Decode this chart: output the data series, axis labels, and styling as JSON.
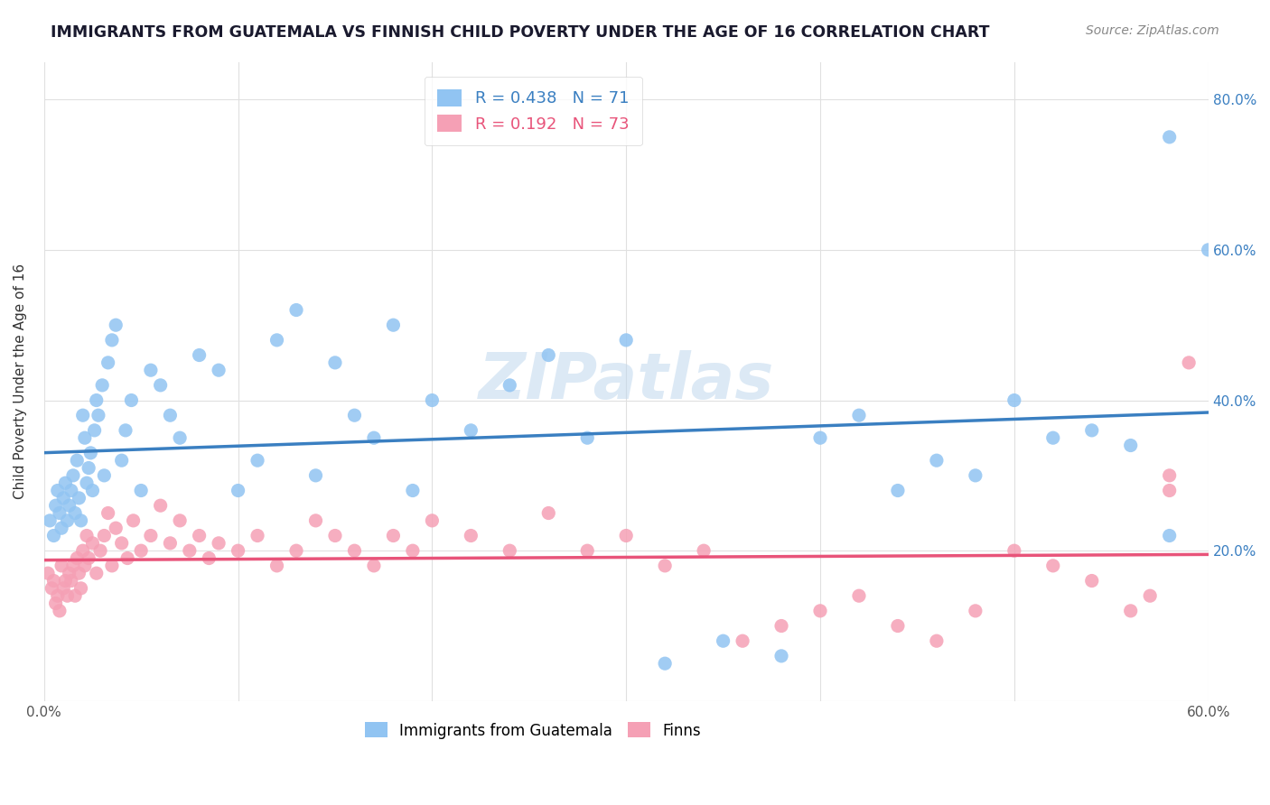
{
  "title": "IMMIGRANTS FROM GUATEMALA VS FINNISH CHILD POVERTY UNDER THE AGE OF 16 CORRELATION CHART",
  "source": "Source: ZipAtlas.com",
  "ylabel": "Child Poverty Under the Age of 16",
  "xlim": [
    0.0,
    0.6
  ],
  "ylim": [
    0.0,
    0.85
  ],
  "xticks": [
    0.0,
    0.1,
    0.2,
    0.3,
    0.4,
    0.5,
    0.6
  ],
  "xticklabels": [
    "0.0%",
    "",
    "",
    "",
    "",
    "",
    "60.0%"
  ],
  "yticks": [
    0.0,
    0.2,
    0.4,
    0.6,
    0.8
  ],
  "yticklabels": [
    "",
    "20.0%",
    "40.0%",
    "60.0%",
    "80.0%"
  ],
  "blue_R": "0.438",
  "blue_N": "71",
  "pink_R": "0.192",
  "pink_N": "73",
  "blue_color": "#91c4f2",
  "pink_color": "#f5a0b5",
  "blue_line_color": "#3a7fc1",
  "pink_line_color": "#e8547a",
  "watermark": "ZIPatlas",
  "background_color": "#ffffff",
  "grid_color": "#e0e0e0",
  "title_color": "#1a1a2e",
  "blue_scatter_x": [
    0.003,
    0.005,
    0.006,
    0.007,
    0.008,
    0.009,
    0.01,
    0.011,
    0.012,
    0.013,
    0.014,
    0.015,
    0.016,
    0.017,
    0.018,
    0.019,
    0.02,
    0.021,
    0.022,
    0.023,
    0.024,
    0.025,
    0.026,
    0.027,
    0.028,
    0.03,
    0.031,
    0.033,
    0.035,
    0.037,
    0.04,
    0.042,
    0.045,
    0.05,
    0.055,
    0.06,
    0.065,
    0.07,
    0.08,
    0.09,
    0.1,
    0.11,
    0.12,
    0.13,
    0.14,
    0.15,
    0.16,
    0.17,
    0.18,
    0.19,
    0.2,
    0.22,
    0.24,
    0.26,
    0.28,
    0.3,
    0.32,
    0.35,
    0.38,
    0.4,
    0.42,
    0.44,
    0.46,
    0.48,
    0.5,
    0.52,
    0.54,
    0.56,
    0.58,
    0.6,
    0.58
  ],
  "blue_scatter_y": [
    0.24,
    0.22,
    0.26,
    0.28,
    0.25,
    0.23,
    0.27,
    0.29,
    0.24,
    0.26,
    0.28,
    0.3,
    0.25,
    0.32,
    0.27,
    0.24,
    0.38,
    0.35,
    0.29,
    0.31,
    0.33,
    0.28,
    0.36,
    0.4,
    0.38,
    0.42,
    0.3,
    0.45,
    0.48,
    0.5,
    0.32,
    0.36,
    0.4,
    0.28,
    0.44,
    0.42,
    0.38,
    0.35,
    0.46,
    0.44,
    0.28,
    0.32,
    0.48,
    0.52,
    0.3,
    0.45,
    0.38,
    0.35,
    0.5,
    0.28,
    0.4,
    0.36,
    0.42,
    0.46,
    0.35,
    0.48,
    0.05,
    0.08,
    0.06,
    0.35,
    0.38,
    0.28,
    0.32,
    0.3,
    0.4,
    0.35,
    0.36,
    0.34,
    0.22,
    0.6,
    0.75
  ],
  "pink_scatter_x": [
    0.002,
    0.004,
    0.005,
    0.006,
    0.007,
    0.008,
    0.009,
    0.01,
    0.011,
    0.012,
    0.013,
    0.014,
    0.015,
    0.016,
    0.017,
    0.018,
    0.019,
    0.02,
    0.021,
    0.022,
    0.023,
    0.025,
    0.027,
    0.029,
    0.031,
    0.033,
    0.035,
    0.037,
    0.04,
    0.043,
    0.046,
    0.05,
    0.055,
    0.06,
    0.065,
    0.07,
    0.075,
    0.08,
    0.085,
    0.09,
    0.1,
    0.11,
    0.12,
    0.13,
    0.14,
    0.15,
    0.16,
    0.17,
    0.18,
    0.19,
    0.2,
    0.22,
    0.24,
    0.26,
    0.28,
    0.3,
    0.32,
    0.34,
    0.36,
    0.38,
    0.4,
    0.42,
    0.44,
    0.46,
    0.48,
    0.5,
    0.52,
    0.54,
    0.56,
    0.58,
    0.59,
    0.58,
    0.57
  ],
  "pink_scatter_y": [
    0.17,
    0.15,
    0.16,
    0.13,
    0.14,
    0.12,
    0.18,
    0.15,
    0.16,
    0.14,
    0.17,
    0.16,
    0.18,
    0.14,
    0.19,
    0.17,
    0.15,
    0.2,
    0.18,
    0.22,
    0.19,
    0.21,
    0.17,
    0.2,
    0.22,
    0.25,
    0.18,
    0.23,
    0.21,
    0.19,
    0.24,
    0.2,
    0.22,
    0.26,
    0.21,
    0.24,
    0.2,
    0.22,
    0.19,
    0.21,
    0.2,
    0.22,
    0.18,
    0.2,
    0.24,
    0.22,
    0.2,
    0.18,
    0.22,
    0.2,
    0.24,
    0.22,
    0.2,
    0.25,
    0.2,
    0.22,
    0.18,
    0.2,
    0.08,
    0.1,
    0.12,
    0.14,
    0.1,
    0.08,
    0.12,
    0.2,
    0.18,
    0.16,
    0.12,
    0.28,
    0.45,
    0.3,
    0.14
  ]
}
